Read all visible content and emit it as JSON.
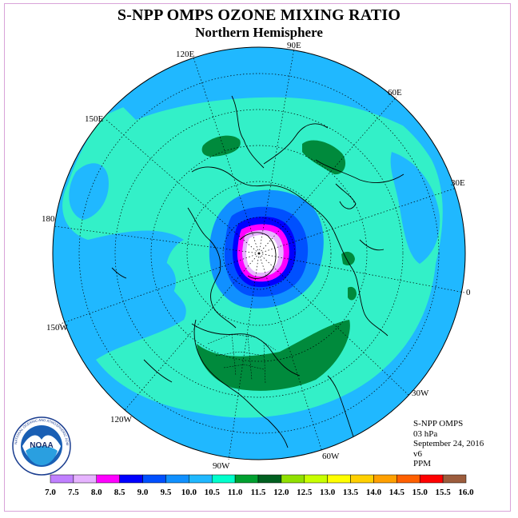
{
  "title": "S-NPP OMPS OZONE MIXING RATIO",
  "subtitle": "Northern Hemisphere",
  "longitude_labels": [
    {
      "text": "90E"
    },
    {
      "text": "60E"
    },
    {
      "text": "120E"
    },
    {
      "text": "30E"
    },
    {
      "text": "150E"
    },
    {
      "text": "180"
    },
    {
      "text": "0"
    },
    {
      "text": "150W"
    },
    {
      "text": "30W"
    },
    {
      "text": "120W"
    },
    {
      "text": "60W"
    },
    {
      "text": "90W"
    }
  ],
  "info": {
    "instrument": "S-NPP OMPS",
    "level": "03 hPa",
    "date": "September 24, 2016",
    "version": "v6",
    "units": "PPM"
  },
  "logo": {
    "text": "NOAA",
    "ring_text": "NATIONAL OCEANIC AND ATMOSPHERIC ADMINISTRATION"
  },
  "colorbar": {
    "tick_labels": [
      "7.0",
      "7.5",
      "8.0",
      "8.5",
      "9.0",
      "9.5",
      "10.0",
      "10.5",
      "11.0",
      "11.5",
      "12.0",
      "12.5",
      "13.0",
      "13.5",
      "14.0",
      "14.5",
      "15.0",
      "15.5",
      "16.0"
    ],
    "colors": [
      "#c080ff",
      "#e6b3ff",
      "#ff00ff",
      "#0000ff",
      "#0050ff",
      "#1090ff",
      "#20b8ff",
      "#00ffcc",
      "#00a030",
      "#006020",
      "#90e000",
      "#c8ff00",
      "#ffff00",
      "#ffd000",
      "#ffa000",
      "#ff6000",
      "#ff0000",
      "#9c5c3c"
    ]
  },
  "map_colors": {
    "ocean_background": "#20b8ff",
    "band_10_5": "#33f0c8",
    "band_11_5": "#008a3c",
    "band_9_5": "#1090ff",
    "band_9_0": "#0050ff",
    "band_8_5": "#0000ff",
    "band_8_0": "#ff00ff",
    "band_7_5": "#e6b3ff",
    "pole_white": "#ffffff"
  }
}
